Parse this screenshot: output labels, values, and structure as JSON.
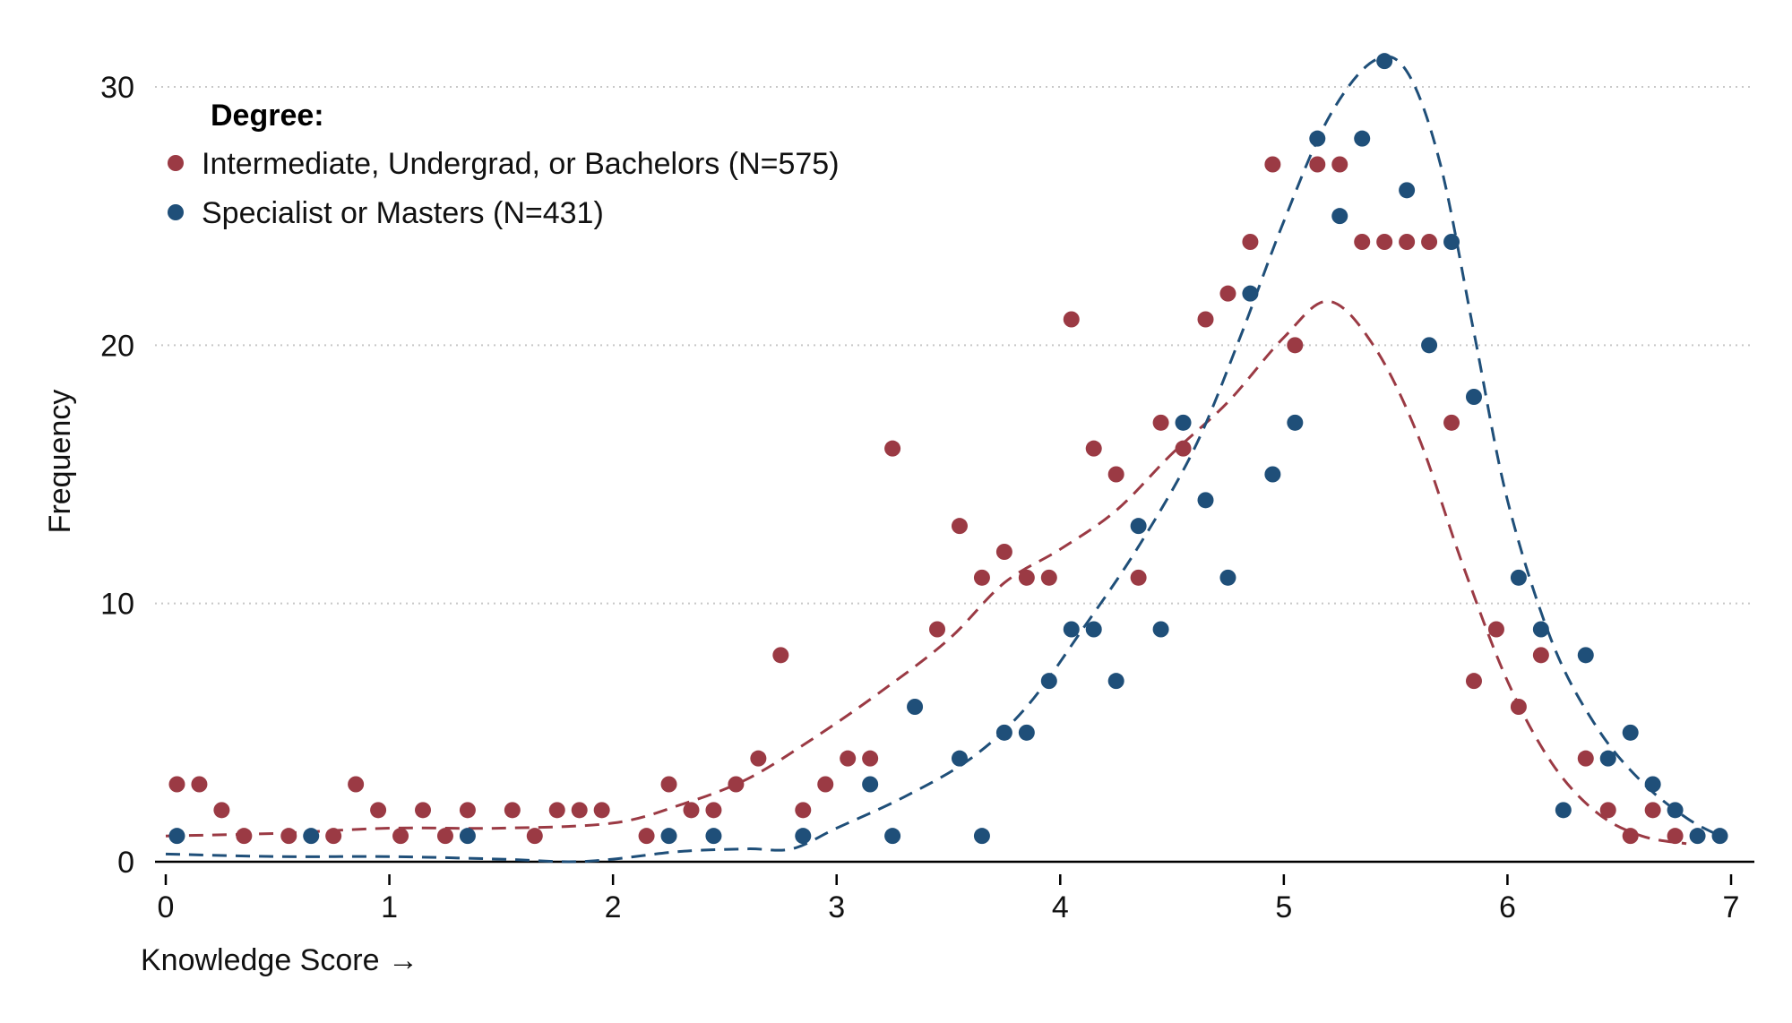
{
  "chart_data": {
    "type": "scatter",
    "xlabel": "Knowledge Score →",
    "ylabel": "Frequency",
    "xlim": [
      -0.1,
      7.1
    ],
    "ylim": [
      0,
      31.5
    ],
    "xticks": [
      0,
      1,
      2,
      3,
      4,
      5,
      6,
      7
    ],
    "yticks": [
      0,
      10,
      20,
      30
    ],
    "grid": "horizontal dotted",
    "legend": {
      "title": "Degree:",
      "placement": "top-left"
    },
    "series": [
      {
        "name": "Intermediate, Undergrad, or Bachelors (N=575)",
        "color": "#9b3a44",
        "points": [
          [
            0.05,
            3
          ],
          [
            0.15,
            3
          ],
          [
            0.25,
            2
          ],
          [
            0.35,
            1
          ],
          [
            0.55,
            1
          ],
          [
            0.75,
            1
          ],
          [
            0.85,
            3
          ],
          [
            0.95,
            2
          ],
          [
            1.05,
            1
          ],
          [
            1.15,
            2
          ],
          [
            1.25,
            1
          ],
          [
            1.35,
            2
          ],
          [
            1.55,
            2
          ],
          [
            1.65,
            1
          ],
          [
            1.75,
            2
          ],
          [
            1.85,
            2
          ],
          [
            1.95,
            2
          ],
          [
            2.15,
            1
          ],
          [
            2.25,
            3
          ],
          [
            2.35,
            2
          ],
          [
            2.45,
            2
          ],
          [
            2.55,
            3
          ],
          [
            2.65,
            4
          ],
          [
            2.75,
            8
          ],
          [
            2.85,
            2
          ],
          [
            2.95,
            3
          ],
          [
            3.05,
            4
          ],
          [
            3.15,
            4
          ],
          [
            3.25,
            16
          ],
          [
            3.45,
            9
          ],
          [
            3.55,
            13
          ],
          [
            3.65,
            11
          ],
          [
            3.75,
            12
          ],
          [
            3.85,
            11
          ],
          [
            3.95,
            11
          ],
          [
            4.05,
            21
          ],
          [
            4.15,
            16
          ],
          [
            4.25,
            15
          ],
          [
            4.35,
            11
          ],
          [
            4.45,
            17
          ],
          [
            4.55,
            16
          ],
          [
            4.65,
            21
          ],
          [
            4.75,
            22
          ],
          [
            4.85,
            24
          ],
          [
            4.95,
            27
          ],
          [
            5.05,
            20
          ],
          [
            5.15,
            27
          ],
          [
            5.25,
            27
          ],
          [
            5.35,
            24
          ],
          [
            5.45,
            24
          ],
          [
            5.55,
            24
          ],
          [
            5.65,
            24
          ],
          [
            5.75,
            17
          ],
          [
            5.85,
            7
          ],
          [
            5.95,
            9
          ],
          [
            6.05,
            6
          ],
          [
            6.15,
            8
          ],
          [
            6.35,
            4
          ],
          [
            6.45,
            2
          ],
          [
            6.55,
            1
          ],
          [
            6.65,
            2
          ],
          [
            6.75,
            1
          ]
        ],
        "smooth": [
          [
            0.0,
            1.0
          ],
          [
            0.5,
            1.1
          ],
          [
            1.0,
            1.3
          ],
          [
            1.5,
            1.3
          ],
          [
            2.0,
            1.5
          ],
          [
            2.3,
            2.2
          ],
          [
            2.6,
            3.2
          ],
          [
            2.9,
            4.8
          ],
          [
            3.2,
            6.6
          ],
          [
            3.5,
            8.6
          ],
          [
            3.75,
            10.8
          ],
          [
            4.0,
            12.1
          ],
          [
            4.25,
            13.6
          ],
          [
            4.5,
            15.8
          ],
          [
            4.75,
            17.8
          ],
          [
            5.0,
            20.3
          ],
          [
            5.2,
            21.7
          ],
          [
            5.4,
            20.0
          ],
          [
            5.6,
            16.5
          ],
          [
            5.8,
            11.5
          ],
          [
            6.0,
            7.0
          ],
          [
            6.2,
            3.8
          ],
          [
            6.4,
            1.9
          ],
          [
            6.6,
            1.0
          ],
          [
            6.8,
            0.7
          ]
        ]
      },
      {
        "name": "Specialist or Masters (N=431)",
        "color": "#1f4f79",
        "points": [
          [
            0.05,
            1
          ],
          [
            0.65,
            1
          ],
          [
            1.35,
            1
          ],
          [
            2.25,
            1
          ],
          [
            2.45,
            1
          ],
          [
            2.85,
            1
          ],
          [
            3.15,
            3
          ],
          [
            3.25,
            1
          ],
          [
            3.35,
            6
          ],
          [
            3.55,
            4
          ],
          [
            3.65,
            1
          ],
          [
            3.75,
            5
          ],
          [
            3.85,
            5
          ],
          [
            3.95,
            7
          ],
          [
            4.05,
            9
          ],
          [
            4.15,
            9
          ],
          [
            4.25,
            7
          ],
          [
            4.35,
            13
          ],
          [
            4.45,
            9
          ],
          [
            4.55,
            17
          ],
          [
            4.65,
            14
          ],
          [
            4.75,
            11
          ],
          [
            4.85,
            22
          ],
          [
            4.95,
            15
          ],
          [
            5.05,
            17
          ],
          [
            5.15,
            28
          ],
          [
            5.25,
            25
          ],
          [
            5.35,
            28
          ],
          [
            5.45,
            31
          ],
          [
            5.55,
            26
          ],
          [
            5.65,
            20
          ],
          [
            5.75,
            24
          ],
          [
            5.85,
            18
          ],
          [
            6.05,
            11
          ],
          [
            6.15,
            9
          ],
          [
            6.25,
            2
          ],
          [
            6.35,
            8
          ],
          [
            6.45,
            4
          ],
          [
            6.55,
            5
          ],
          [
            6.65,
            3
          ],
          [
            6.75,
            2
          ],
          [
            6.85,
            1
          ],
          [
            6.95,
            1
          ]
        ],
        "smooth": [
          [
            0.0,
            0.3
          ],
          [
            0.5,
            0.2
          ],
          [
            1.0,
            0.2
          ],
          [
            1.5,
            0.1
          ],
          [
            1.8,
            0.0
          ],
          [
            2.0,
            0.1
          ],
          [
            2.3,
            0.4
          ],
          [
            2.6,
            0.5
          ],
          [
            2.8,
            0.5
          ],
          [
            3.0,
            1.3
          ],
          [
            3.3,
            2.5
          ],
          [
            3.6,
            4.0
          ],
          [
            3.85,
            6.0
          ],
          [
            4.1,
            9.0
          ],
          [
            4.35,
            12.2
          ],
          [
            4.6,
            16.0
          ],
          [
            4.8,
            20.2
          ],
          [
            5.0,
            24.8
          ],
          [
            5.2,
            28.8
          ],
          [
            5.4,
            31.0
          ],
          [
            5.55,
            30.6
          ],
          [
            5.7,
            27.0
          ],
          [
            5.85,
            20.5
          ],
          [
            6.0,
            14.0
          ],
          [
            6.2,
            8.5
          ],
          [
            6.4,
            5.2
          ],
          [
            6.6,
            3.1
          ],
          [
            6.8,
            1.7
          ],
          [
            6.95,
            1.0
          ]
        ]
      }
    ]
  }
}
